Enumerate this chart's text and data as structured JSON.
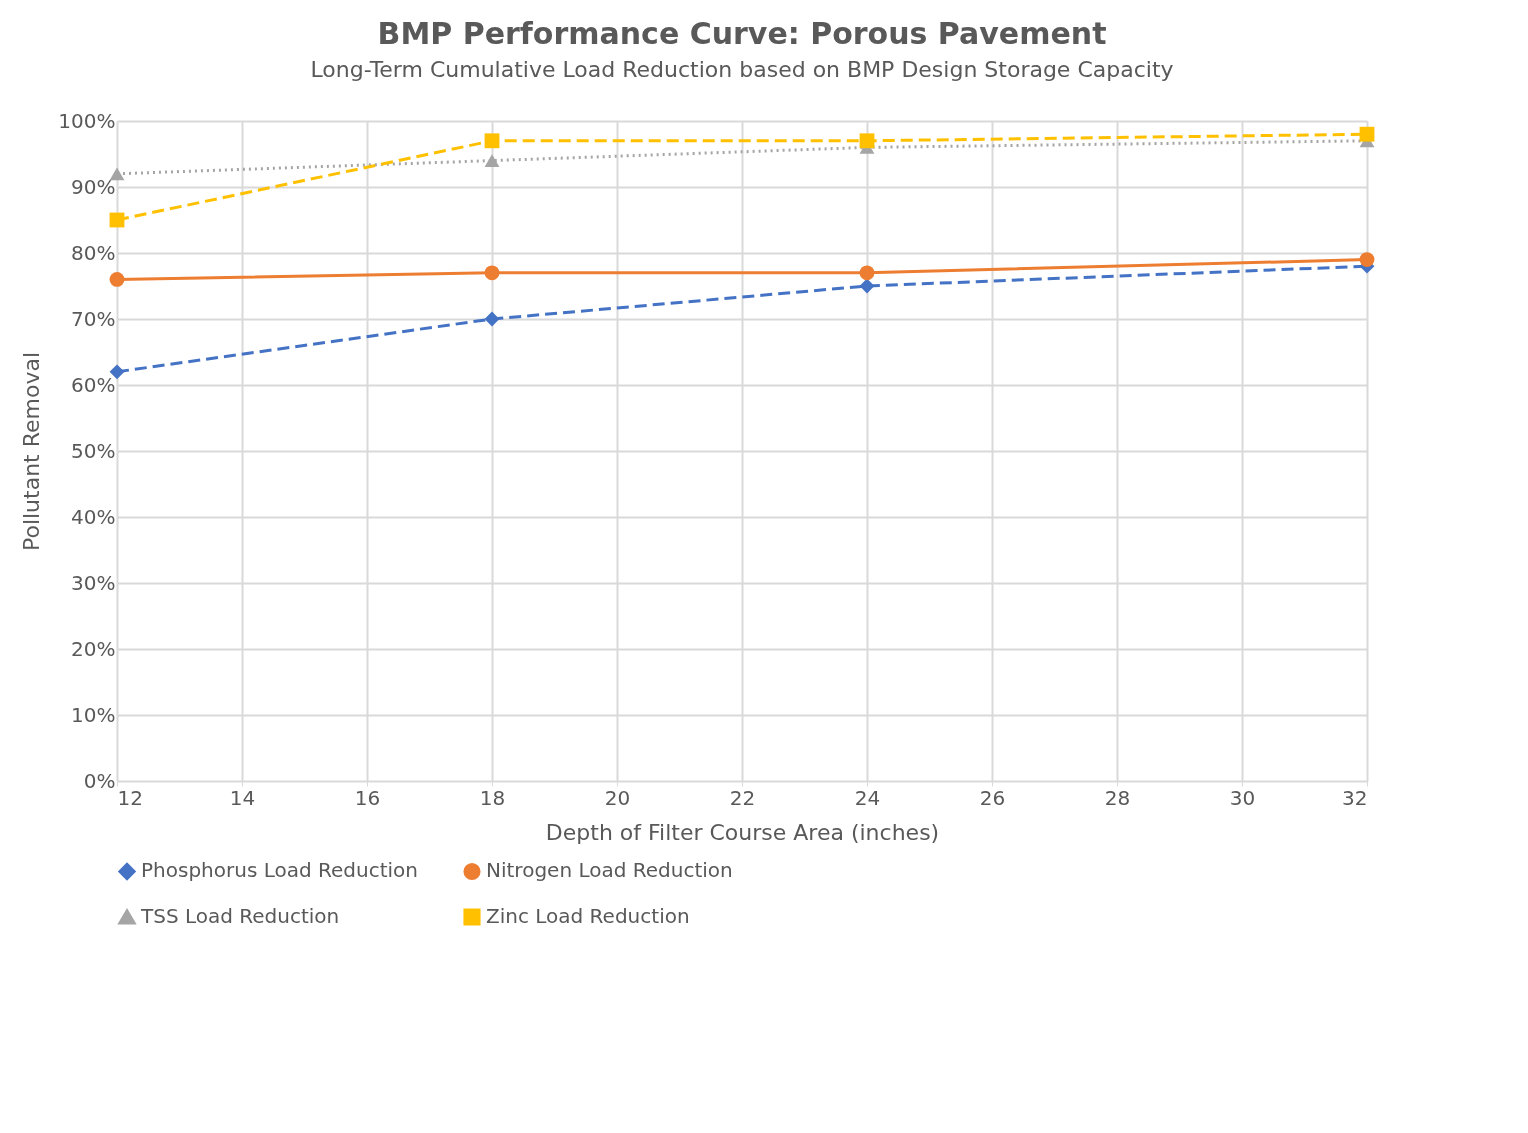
{
  "chart_data": {
    "type": "line",
    "title": "BMP Performance Curve: Porous Pavement",
    "subtitle": "Long-Term Cumulative Load Reduction based on BMP Design Storage Capacity",
    "xlabel": "Depth of Filter Course Area (inches)",
    "ylabel": "Pollutant Removal",
    "x": [
      12,
      18,
      24,
      32
    ],
    "series": [
      {
        "name": "Phosphorus Load Reduction",
        "color": "#4472c4",
        "marker": "diamond",
        "line_style": "dashed",
        "values": [
          62,
          70,
          75,
          78
        ]
      },
      {
        "name": "Nitrogen Load Reduction",
        "color": "#ed7d31",
        "marker": "circle",
        "line_style": "solid",
        "values": [
          76,
          77,
          77,
          79
        ]
      },
      {
        "name": "TSS Load Reduction",
        "color": "#a5a5a5",
        "marker": "triangle",
        "line_style": "dotted",
        "values": [
          92,
          94,
          96,
          97
        ]
      },
      {
        "name": "Zinc Load Reduction",
        "color": "#ffc000",
        "marker": "square",
        "line_style": "dashed",
        "values": [
          85,
          97,
          97,
          98
        ]
      }
    ],
    "xlim": [
      12,
      32
    ],
    "xticks": [
      12,
      14,
      16,
      18,
      20,
      22,
      24,
      26,
      28,
      30,
      32
    ],
    "ylim": [
      0,
      100
    ],
    "yticks": [
      {
        "value": 0,
        "label": "0%"
      },
      {
        "value": 10,
        "label": "10%"
      },
      {
        "value": 20,
        "label": "20%"
      },
      {
        "value": 30,
        "label": "30%"
      },
      {
        "value": 40,
        "label": "40%"
      },
      {
        "value": 50,
        "label": "50%"
      },
      {
        "value": 60,
        "label": "60%"
      },
      {
        "value": 70,
        "label": "70%"
      },
      {
        "value": 80,
        "label": "80%"
      },
      {
        "value": 90,
        "label": "90%"
      },
      {
        "value": 100,
        "label": "100%"
      }
    ],
    "grid": true,
    "legend": "bottom"
  }
}
